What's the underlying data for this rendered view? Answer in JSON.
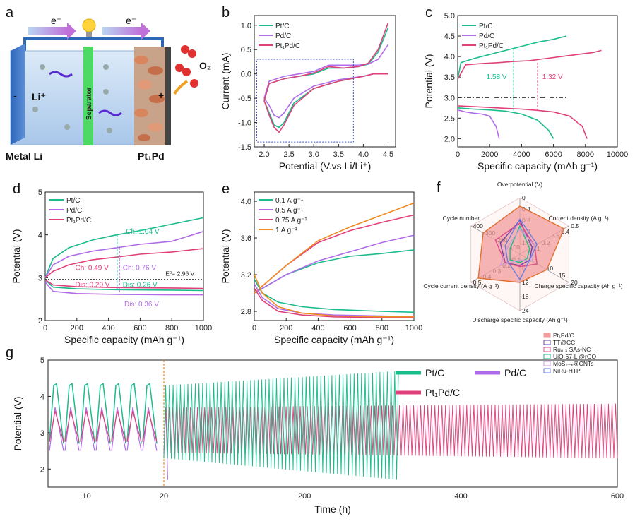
{
  "colors": {
    "green": "#1ABC8C",
    "purple": "#B06CE8",
    "pink": "#E0407A",
    "orange": "#F08A24",
    "blue": "#3548C8",
    "gray": "#888888"
  },
  "panel_a": {
    "label": "a",
    "electron_left": "e⁻",
    "electron_right": "e⁻",
    "separator": "Separator",
    "li_ion": "Li⁺",
    "o2": "O₂",
    "anode_sign": "-",
    "cathode_sign": "+",
    "left_caption": "Metal Li",
    "right_caption": "Pt₁Pd"
  },
  "chart_data": [
    {
      "id": "b",
      "type": "line",
      "label": "b",
      "xlabel": "Potential (V.vs Li/Li⁺)",
      "ylabel": "Current (mA)",
      "xlim": [
        1.8,
        4.65
      ],
      "ylim": [
        -1.5,
        1.2
      ],
      "xticks": [
        2.0,
        2.5,
        3.0,
        3.5,
        4.0,
        4.5
      ],
      "yticks": [
        -1.5,
        -1.0,
        -0.5,
        0.0,
        0.5,
        1.0
      ],
      "legend": [
        "Pt/C",
        "Pd/C",
        "Pt₁Pd/C"
      ],
      "series": [
        {
          "name": "Pt/C",
          "color": "green",
          "x": [
            2.0,
            2.1,
            2.2,
            2.3,
            2.4,
            2.6,
            3.0,
            3.5,
            4.0,
            4.2,
            4.4,
            4.5
          ],
          "y": [
            -0.55,
            -0.8,
            -1.05,
            -1.1,
            -1.0,
            -0.6,
            -0.3,
            -0.15,
            -0.05,
            0.0,
            0.0,
            0.0
          ]
        },
        {
          "name": "Pd/C",
          "color": "purple",
          "x": [
            2.0,
            2.1,
            2.2,
            2.3,
            2.4,
            2.6,
            3.0,
            3.5,
            4.0,
            4.2,
            4.4,
            4.5
          ],
          "y": [
            -0.5,
            -0.65,
            -0.85,
            -0.9,
            -0.8,
            -0.5,
            -0.25,
            -0.12,
            -0.05,
            0.0,
            0.0,
            0.0
          ]
        },
        {
          "name": "Pt₁Pd/C",
          "color": "pink",
          "x": [
            2.0,
            2.1,
            2.2,
            2.3,
            2.4,
            2.6,
            3.0,
            3.5,
            4.0,
            4.2,
            4.4,
            4.5
          ],
          "y": [
            -0.55,
            -0.85,
            -1.1,
            -1.2,
            -1.05,
            -0.65,
            -0.3,
            -0.15,
            -0.05,
            0.0,
            0.0,
            0.0
          ]
        }
      ],
      "anodic": [
        {
          "name": "Pt/C",
          "x": [
            4.5,
            4.3,
            4.1,
            3.9,
            3.6,
            3.3,
            3.0,
            2.7,
            2.4,
            2.1,
            2.0
          ],
          "y": [
            0.95,
            0.45,
            0.2,
            0.15,
            0.12,
            0.12,
            0.0,
            -0.05,
            -0.1,
            -0.2,
            -0.55
          ]
        },
        {
          "name": "Pd/C",
          "x": [
            4.5,
            4.3,
            4.1,
            3.9,
            3.6,
            3.3,
            3.0,
            2.7,
            2.4,
            2.1,
            2.0
          ],
          "y": [
            0.6,
            0.3,
            0.2,
            0.18,
            0.18,
            0.18,
            0.05,
            0.0,
            -0.05,
            -0.15,
            -0.5
          ]
        },
        {
          "name": "Pt₁Pd/C",
          "x": [
            4.5,
            4.3,
            4.1,
            3.9,
            3.6,
            3.3,
            3.0,
            2.7,
            2.4,
            2.1,
            2.0
          ],
          "y": [
            1.05,
            0.5,
            0.22,
            0.15,
            0.12,
            0.15,
            0.02,
            -0.05,
            -0.1,
            -0.2,
            -0.55
          ]
        }
      ]
    },
    {
      "id": "c",
      "type": "line",
      "label": "c",
      "xlabel": "Specific capacity (mAh g⁻¹)",
      "ylabel": "Potential (V)",
      "xlim": [
        0,
        10000
      ],
      "ylim": [
        1.8,
        5.0
      ],
      "xticks": [
        0,
        2000,
        4000,
        6000,
        8000,
        10000
      ],
      "yticks": [
        2.0,
        2.5,
        3.0,
        3.5,
        4.0,
        4.5,
        5.0
      ],
      "legend": [
        "Pt/C",
        "Pd/C",
        "Pt₁Pd/C"
      ],
      "annotations": [
        "1.58 V",
        "1.32 V"
      ],
      "series": [
        {
          "name": "Pt/C charge",
          "color": "green",
          "x": [
            0,
            200,
            1000,
            2000,
            3000,
            4000,
            5000,
            6000,
            6800
          ],
          "y": [
            3.45,
            3.85,
            3.95,
            4.05,
            4.15,
            4.25,
            4.35,
            4.42,
            4.5
          ]
        },
        {
          "name": "Pt/C discharge",
          "color": "green",
          "x": [
            0,
            1000,
            2000,
            3000,
            4000,
            5000,
            5700,
            6000
          ],
          "y": [
            2.75,
            2.72,
            2.7,
            2.67,
            2.6,
            2.45,
            2.2,
            2.0
          ]
        },
        {
          "name": "Pd/C discharge",
          "color": "purple",
          "x": [
            0,
            500,
            1000,
            1500,
            2000,
            2400,
            2600
          ],
          "y": [
            2.7,
            2.65,
            2.62,
            2.6,
            2.55,
            2.3,
            2.0
          ]
        },
        {
          "name": "Pt₁Pd/C charge",
          "color": "pink",
          "x": [
            0,
            500,
            1500,
            2500,
            3500,
            4500,
            5500,
            6500,
            7500,
            8500,
            9000
          ],
          "y": [
            3.45,
            3.8,
            3.83,
            3.85,
            3.88,
            3.9,
            3.95,
            4.0,
            4.05,
            4.1,
            4.15
          ]
        },
        {
          "name": "Pt₁Pd/C discharge",
          "color": "pink",
          "x": [
            0,
            1000,
            2000,
            3000,
            4000,
            5000,
            6000,
            7000,
            7800,
            8100
          ],
          "y": [
            2.8,
            2.78,
            2.76,
            2.74,
            2.72,
            2.69,
            2.65,
            2.55,
            2.3,
            2.0
          ]
        }
      ]
    },
    {
      "id": "d",
      "type": "line",
      "label": "d",
      "xlabel": "Specific capacity (mAh g⁻¹)",
      "ylabel": "Potential (V)",
      "xlim": [
        0,
        1000
      ],
      "ylim": [
        2,
        5
      ],
      "xticks": [
        0,
        200,
        400,
        600,
        800,
        1000
      ],
      "yticks": [
        2,
        3,
        4,
        5
      ],
      "legend": [
        "Pt/C",
        "Pd/C",
        "Pt₁Pd/C"
      ],
      "annotations": [
        "Ch: 1.04 V",
        "Ch: 0.49 V",
        "Ch: 0.76 V",
        "E⁰= 2.96 V",
        "Dis: 0.20 V",
        "Dis: 0.26 V",
        "Dis: 0.36 V"
      ],
      "series": [
        {
          "name": "Pt/C",
          "color": "green",
          "x": [
            0,
            50,
            150,
            300,
            450,
            600,
            800,
            1000
          ],
          "y": [
            3.0,
            3.45,
            3.7,
            3.88,
            4.0,
            4.1,
            4.25,
            4.4
          ]
        },
        {
          "name": "Pd/C",
          "color": "purple",
          "x": [
            0,
            50,
            150,
            300,
            450,
            600,
            800,
            1000
          ],
          "y": [
            3.0,
            3.3,
            3.5,
            3.62,
            3.7,
            3.78,
            3.85,
            4.08
          ]
        },
        {
          "name": "Pt₁Pd/C",
          "color": "pink",
          "x": [
            0,
            50,
            150,
            300,
            450,
            600,
            800,
            1000
          ],
          "y": [
            3.0,
            3.15,
            3.3,
            3.42,
            3.48,
            3.55,
            3.6,
            3.68
          ]
        },
        {
          "name": "Pt/C dis",
          "color": "green",
          "x": [
            0,
            50,
            200,
            450,
            800,
            1000
          ],
          "y": [
            2.95,
            2.78,
            2.74,
            2.72,
            2.71,
            2.7
          ]
        },
        {
          "name": "Pd/C dis",
          "color": "purple",
          "x": [
            0,
            50,
            200,
            450,
            800,
            1000
          ],
          "y": [
            2.9,
            2.68,
            2.63,
            2.61,
            2.6,
            2.6
          ]
        },
        {
          "name": "Pt₁Pd/C dis",
          "color": "pink",
          "x": [
            0,
            50,
            200,
            450,
            800,
            1000
          ],
          "y": [
            2.95,
            2.83,
            2.79,
            2.77,
            2.76,
            2.75
          ]
        }
      ]
    },
    {
      "id": "e",
      "type": "line",
      "label": "e",
      "xlabel": "Specific capacity (mAh g⁻¹)",
      "ylabel": "Potential (V)",
      "xlim": [
        0,
        1000
      ],
      "ylim": [
        2.7,
        4.1
      ],
      "xticks": [
        0,
        200,
        400,
        600,
        800,
        1000
      ],
      "yticks": [
        2.8,
        3.2,
        3.6,
        4.0
      ],
      "legend": [
        "0.1 A g⁻¹",
        "0.5 A g⁻¹",
        "0.75 A g⁻¹",
        "1 A g⁻¹"
      ],
      "series": [
        {
          "name": "0.1",
          "color": "green",
          "x": [
            0,
            100,
            200,
            400,
            600,
            800,
            1000
          ],
          "y": [
            3.0,
            3.1,
            3.2,
            3.33,
            3.4,
            3.43,
            3.47
          ]
        },
        {
          "name": "0.5",
          "color": "purple",
          "x": [
            0,
            100,
            200,
            400,
            600,
            800,
            1000
          ],
          "y": [
            3.0,
            3.1,
            3.2,
            3.35,
            3.45,
            3.55,
            3.63
          ]
        },
        {
          "name": "0.75",
          "color": "pink",
          "x": [
            0,
            100,
            200,
            400,
            600,
            800,
            1000
          ],
          "y": [
            3.0,
            3.15,
            3.3,
            3.55,
            3.68,
            3.77,
            3.85
          ]
        },
        {
          "name": "1",
          "color": "orange",
          "x": [
            0,
            100,
            200,
            400,
            600,
            800,
            1000
          ],
          "y": [
            3.0,
            3.15,
            3.3,
            3.57,
            3.72,
            3.85,
            3.98
          ]
        },
        {
          "name": "0.1 dis",
          "color": "green",
          "x": [
            0,
            50,
            150,
            300,
            500,
            800,
            1000
          ],
          "y": [
            3.15,
            3.0,
            2.9,
            2.85,
            2.82,
            2.8,
            2.79
          ]
        },
        {
          "name": "0.5 dis",
          "color": "purple",
          "x": [
            0,
            50,
            150,
            300,
            500,
            800,
            1000
          ],
          "y": [
            3.1,
            2.95,
            2.83,
            2.78,
            2.76,
            2.75,
            2.74
          ]
        },
        {
          "name": "0.75 dis",
          "color": "pink",
          "x": [
            0,
            50,
            150,
            300,
            500,
            800,
            1000
          ],
          "y": [
            3.05,
            2.92,
            2.8,
            2.76,
            2.74,
            2.73,
            2.73
          ]
        },
        {
          "name": "1 dis",
          "color": "orange",
          "x": [
            0,
            50,
            150,
            300,
            500,
            800,
            1000
          ],
          "y": [
            3.2,
            3.0,
            2.85,
            2.78,
            2.75,
            2.74,
            2.74
          ]
        }
      ]
    },
    {
      "id": "f",
      "type": "radar",
      "label": "f",
      "axes": [
        {
          "name": "Overpotential  (V)",
          "ticks": [
            "1.6",
            "1.2",
            "0.8",
            "0.4",
            "0"
          ]
        },
        {
          "name": "Current density (A g⁻¹)",
          "ticks": [
            "0.1",
            "0.2",
            "0.3",
            "0.4",
            "0.5"
          ]
        },
        {
          "name": "Charge specific capacity (Ah g⁻¹)",
          "ticks": [
            "5",
            "10",
            "15",
            "20"
          ]
        },
        {
          "name": "Discharge specific capacity (Ah g⁻¹)",
          "ticks": [
            "6",
            "12",
            "18",
            "24"
          ]
        },
        {
          "name": "Cycle current density (A g⁻¹)",
          "ticks": [
            "0.1",
            "0.2",
            "0.3",
            "0.4",
            "0.5"
          ]
        },
        {
          "name": "Cycle number",
          "ticks": [
            "100",
            "200",
            "300",
            "400"
          ]
        }
      ],
      "legend": [
        "Pt₁Pd/C",
        "TT@CC",
        "Ru₀.₃ SAs-NC",
        "UiO-67-Li@rGO",
        "MoS₂₋ₓ@CNTs",
        "NiRu-HTP"
      ],
      "series": [
        {
          "name": "Pt₁Pd/C",
          "color": "#F19C9C",
          "values": [
            0.85,
            0.9,
            0.55,
            0.5,
            0.85,
            0.75
          ]
        },
        {
          "name": "TT@CC",
          "color": "#6B3FB0",
          "values": [
            0.6,
            0.25,
            0.2,
            0.2,
            0.3,
            0.4
          ]
        },
        {
          "name": "Ru₀.₃ SAs-NC",
          "color": "#E04C8C",
          "values": [
            0.55,
            0.3,
            0.35,
            0.22,
            0.3,
            0.5
          ]
        },
        {
          "name": "UiO-67-Li@rGO",
          "color": "#1ABC8C",
          "values": [
            0.5,
            0.2,
            0.15,
            0.15,
            0.2,
            0.2
          ]
        },
        {
          "name": "MoS₂₋ₓ@CNTs",
          "color": "#C8A0D8",
          "values": [
            0.45,
            0.3,
            0.25,
            0.1,
            0.4,
            0.25
          ]
        },
        {
          "name": "NiRu-HTP",
          "color": "#6C7CE0",
          "values": [
            0.62,
            0.35,
            0.2,
            0.45,
            0.25,
            0.3
          ]
        }
      ]
    },
    {
      "id": "g",
      "type": "line",
      "label": "g",
      "xlabel": "Time (h)",
      "ylabel": "Potential (V)",
      "ylim": [
        1.5,
        5
      ],
      "yticks": [
        2,
        3,
        4,
        5
      ],
      "xticks_left": [
        "10",
        "20"
      ],
      "xticks_right": [
        "200",
        "400",
        "600"
      ],
      "legend": [
        "Pt/C",
        "Pd/C",
        "Pt₁Pd/C"
      ],
      "series": [
        {
          "name": "Pt/C",
          "color": "green",
          "charge_top": [
            4.3,
            4.7
          ],
          "discharge_bottom": [
            2.3,
            1.7
          ],
          "end_h": 320
        },
        {
          "name": "Pd/C",
          "color": "purple",
          "charge_top": [
            3.7,
            3.7
          ],
          "discharge_bottom": [
            2.5,
            1.7
          ],
          "end_h": 25
        },
        {
          "name": "Pt₁Pd/C",
          "color": "pink",
          "charge_top": [
            3.7,
            3.8
          ],
          "discharge_bottom": [
            2.45,
            2.3
          ],
          "end_h": 600
        }
      ]
    }
  ]
}
